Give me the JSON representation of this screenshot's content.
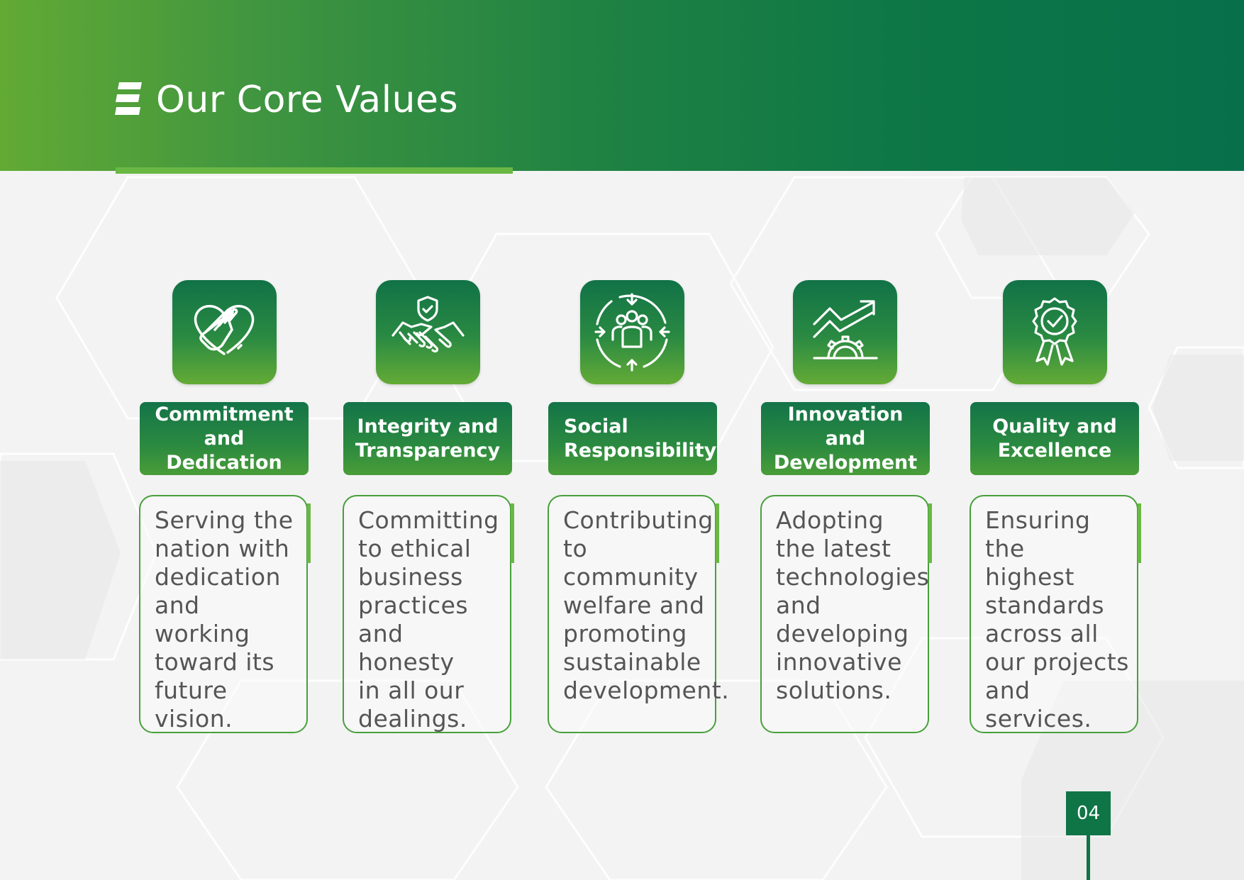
{
  "header": {
    "title": "Our Core Values",
    "logo_icon": "stacked-bars-logo-icon"
  },
  "values": [
    {
      "icon": "heart-hand-icon",
      "title": "Commitment\nand Dedication",
      "description": "Serving the\nnation with\ndedication\nand working\ntoward its\nfuture vision."
    },
    {
      "icon": "handshake-shield-icon",
      "title": "Integrity and\nTransparency",
      "description": "Committing\nto ethical\nbusiness\npractices\nand honesty\nin all our\ndealings."
    },
    {
      "icon": "community-cycle-icon",
      "title": "Social\nResponsibility",
      "description": "Contributing\nto community\nwelfare and\npromoting\nsustainable\ndevelopment."
    },
    {
      "icon": "growth-gear-icon",
      "title": "Innovation and\nDevelopment",
      "description": "Adopting\nthe latest\ntechnologies\nand\ndeveloping\ninnovative\nsolutions."
    },
    {
      "icon": "quality-badge-icon",
      "title": "Quality and\nExcellence",
      "description": "Ensuring the\nhighest\nstandards\nacross all\nour projects\nand\nservices."
    }
  ],
  "page_number": "04",
  "colors": {
    "header_start": "#62aa34",
    "header_end": "#07704a",
    "accent_green": "#6ab844",
    "dark_green": "#0f7446",
    "text_gray": "#555555"
  }
}
